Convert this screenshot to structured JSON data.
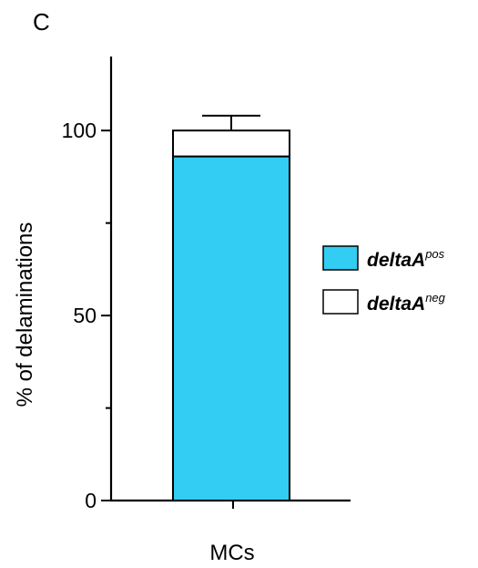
{
  "panel_label": "C",
  "chart_data": {
    "type": "bar",
    "stacked": true,
    "categories": [
      "MCs"
    ],
    "ylabel": "% of delaminations",
    "xlabel": "",
    "ylim": [
      0,
      120
    ],
    "yticks_major": [
      0,
      50,
      100
    ],
    "yticks_minor": [
      25,
      75
    ],
    "grid": false,
    "legend_position": "right",
    "series": [
      {
        "name": "deltaA^pos",
        "name_base": "deltaA",
        "name_sup": "pos",
        "values": [
          93
        ],
        "error": [
          4
        ],
        "color": "#33ccf2"
      },
      {
        "name": "deltaA^neg",
        "name_base": "deltaA",
        "name_sup": "neg",
        "values": [
          7
        ],
        "error": [
          4
        ],
        "color": "#ffffff"
      }
    ]
  }
}
